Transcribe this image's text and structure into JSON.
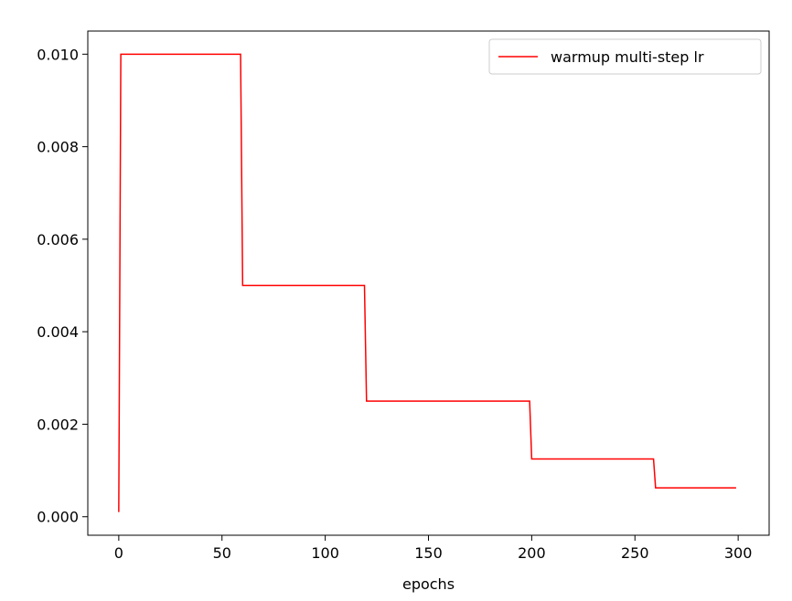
{
  "chart_data": {
    "type": "line",
    "title": "",
    "xlabel": "epochs",
    "ylabel": "",
    "xlim": [
      -15,
      315
    ],
    "ylim": [
      -0.0004,
      0.0105
    ],
    "xticks": [
      0,
      50,
      100,
      150,
      200,
      250,
      300
    ],
    "xtick_labels": [
      "0",
      "50",
      "100",
      "150",
      "200",
      "250",
      "300"
    ],
    "yticks": [
      0.0,
      0.002,
      0.004,
      0.006,
      0.008,
      0.01
    ],
    "ytick_labels": [
      "0.000",
      "0.002",
      "0.004",
      "0.006",
      "0.008",
      "0.010"
    ],
    "grid": false,
    "legend_position": "top-right",
    "series": [
      {
        "name": "warmup multi-step lr",
        "color": "#ff0000",
        "x": [
          0,
          1,
          59,
          60,
          119,
          120,
          199,
          200,
          259,
          260,
          299
        ],
        "y": [
          0.0001,
          0.01,
          0.01,
          0.005,
          0.005,
          0.0025,
          0.0025,
          0.00125,
          0.00125,
          0.000625,
          0.000625
        ]
      }
    ]
  }
}
